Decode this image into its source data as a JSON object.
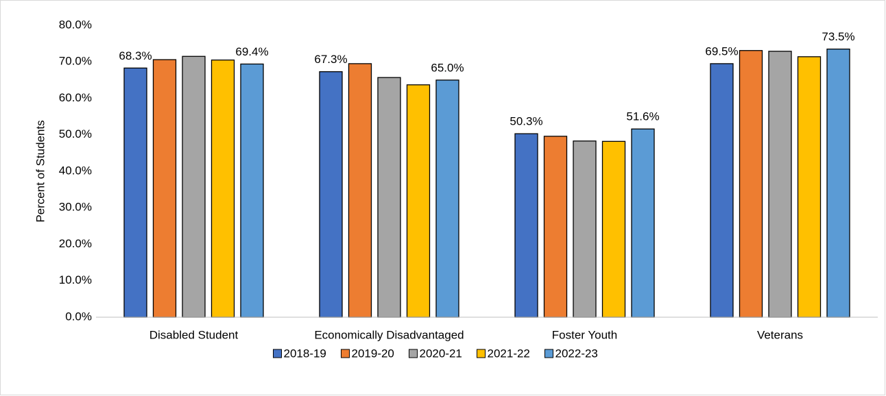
{
  "chart_data": {
    "type": "bar",
    "y_label": "Percent of Students",
    "categories": [
      "Disabled Student",
      "Economically Disadvantaged",
      "Foster Youth",
      "Veterans"
    ],
    "series": [
      {
        "name": "2018-19",
        "color": "#4472c4",
        "values": [
          68.3,
          67.3,
          50.3,
          69.5
        ],
        "value_labels": [
          "68.3%",
          "67.3%",
          "50.3%",
          "69.5%"
        ]
      },
      {
        "name": "2019-20",
        "color": "#ed7d31",
        "values": [
          70.6,
          69.5,
          49.6,
          73.1
        ]
      },
      {
        "name": "2020-21",
        "color": "#a5a5a5",
        "values": [
          71.5,
          65.7,
          48.3,
          72.9
        ]
      },
      {
        "name": "2021-22",
        "color": "#ffc000",
        "values": [
          70.5,
          63.7,
          48.2,
          71.4
        ]
      },
      {
        "name": "2022-23",
        "color": "#5b9bd5",
        "values": [
          69.4,
          65.0,
          51.6,
          73.5
        ],
        "value_labels": [
          "69.4%",
          "65.0%",
          "51.6%",
          "73.5%"
        ]
      }
    ],
    "ylim": [
      0,
      80
    ],
    "yticks": [
      {
        "value": 0,
        "label": "0.0%"
      },
      {
        "value": 10,
        "label": "10.0%"
      },
      {
        "value": 20,
        "label": "20.0%"
      },
      {
        "value": 30,
        "label": "30.0%"
      },
      {
        "value": 40,
        "label": "40.0%"
      },
      {
        "value": 50,
        "label": "50.0%"
      },
      {
        "value": 60,
        "label": "60.0%"
      },
      {
        "value": 70,
        "label": "70.0%"
      },
      {
        "value": 80,
        "label": "80.0%"
      }
    ],
    "grid": false,
    "legend": "bottom"
  }
}
